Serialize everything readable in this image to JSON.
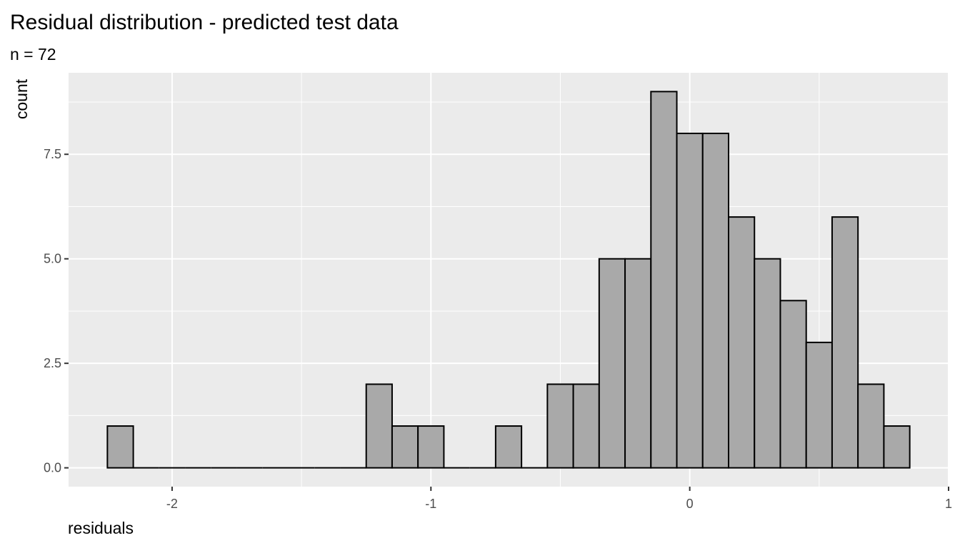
{
  "chart_data": {
    "type": "histogram",
    "title": "Residual distribution - predicted test data",
    "subtitle": "n = 72",
    "xlabel": "residuals",
    "ylabel": "count",
    "bin_width": 0.1,
    "bins": [
      {
        "center": -2.2,
        "count": 1
      },
      {
        "center": -2.1,
        "count": 0
      },
      {
        "center": -2.0,
        "count": 0
      },
      {
        "center": -1.9,
        "count": 0
      },
      {
        "center": -1.8,
        "count": 0
      },
      {
        "center": -1.7,
        "count": 0
      },
      {
        "center": -1.6,
        "count": 0
      },
      {
        "center": -1.5,
        "count": 0
      },
      {
        "center": -1.4,
        "count": 0
      },
      {
        "center": -1.3,
        "count": 0
      },
      {
        "center": -1.2,
        "count": 2
      },
      {
        "center": -1.1,
        "count": 1
      },
      {
        "center": -1.0,
        "count": 1
      },
      {
        "center": -0.9,
        "count": 0
      },
      {
        "center": -0.8,
        "count": 0
      },
      {
        "center": -0.7,
        "count": 1
      },
      {
        "center": -0.6,
        "count": 0
      },
      {
        "center": -0.5,
        "count": 2
      },
      {
        "center": -0.4,
        "count": 2
      },
      {
        "center": -0.3,
        "count": 5
      },
      {
        "center": -0.2,
        "count": 5
      },
      {
        "center": -0.1,
        "count": 9
      },
      {
        "center": 0.0,
        "count": 8
      },
      {
        "center": 0.1,
        "count": 8
      },
      {
        "center": 0.2,
        "count": 6
      },
      {
        "center": 0.3,
        "count": 5
      },
      {
        "center": 0.4,
        "count": 4
      },
      {
        "center": 0.5,
        "count": 3
      },
      {
        "center": 0.6,
        "count": 6
      },
      {
        "center": 0.7,
        "count": 2
      },
      {
        "center": 0.8,
        "count": 1
      }
    ],
    "xlim": [
      -2.4,
      1.0
    ],
    "ylim": [
      -0.45,
      9.45
    ],
    "x_ticks": [
      -2,
      -1,
      0,
      1
    ],
    "x_tick_labels": [
      "-2",
      "-1",
      "0",
      "1"
    ],
    "y_ticks": [
      0,
      2.5,
      5,
      7.5
    ],
    "y_tick_labels": [
      "0.0",
      "2.5",
      "5.0",
      "7.5"
    ],
    "grid": true,
    "colors": {
      "panel_background": "#ebebeb",
      "grid_major": "#ffffff",
      "bar_fill": "#a9a9a9",
      "bar_outline": "#000000",
      "tick_label": "#4d4d4d"
    }
  }
}
